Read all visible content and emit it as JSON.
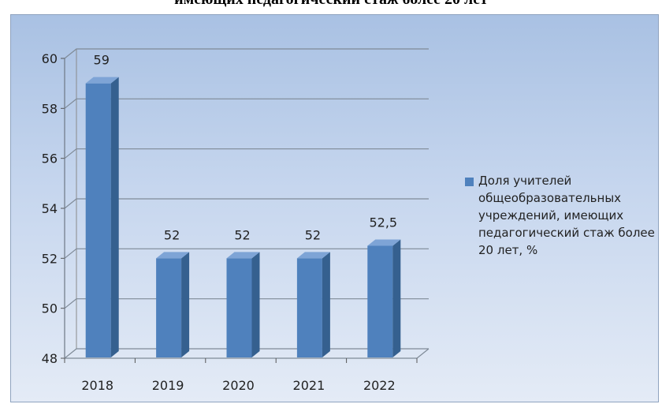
{
  "title": "имеющих педагогический стаж более 20 лет",
  "chart_data": {
    "type": "bar",
    "categories": [
      "2018",
      "2019",
      "2020",
      "2021",
      "2022"
    ],
    "series": [
      {
        "name": "Доля учителей общеобразовательных учреждений, имеющих педагогический стаж более 20 лет, %",
        "values": [
          59,
          52,
          52,
          52,
          52.5
        ],
        "value_labels": [
          "59",
          "52",
          "52",
          "52",
          "52,5"
        ]
      }
    ],
    "ylim": [
      48,
      60
    ],
    "yticks": [
      "48",
      "50",
      "52",
      "54",
      "56",
      "58",
      "60"
    ],
    "grid": true,
    "legend": "right",
    "style": "3d-bar",
    "colors": {
      "bar_front": "#4f81bd",
      "bar_top": "#7ea4d6",
      "bar_side": "#35608f"
    }
  }
}
